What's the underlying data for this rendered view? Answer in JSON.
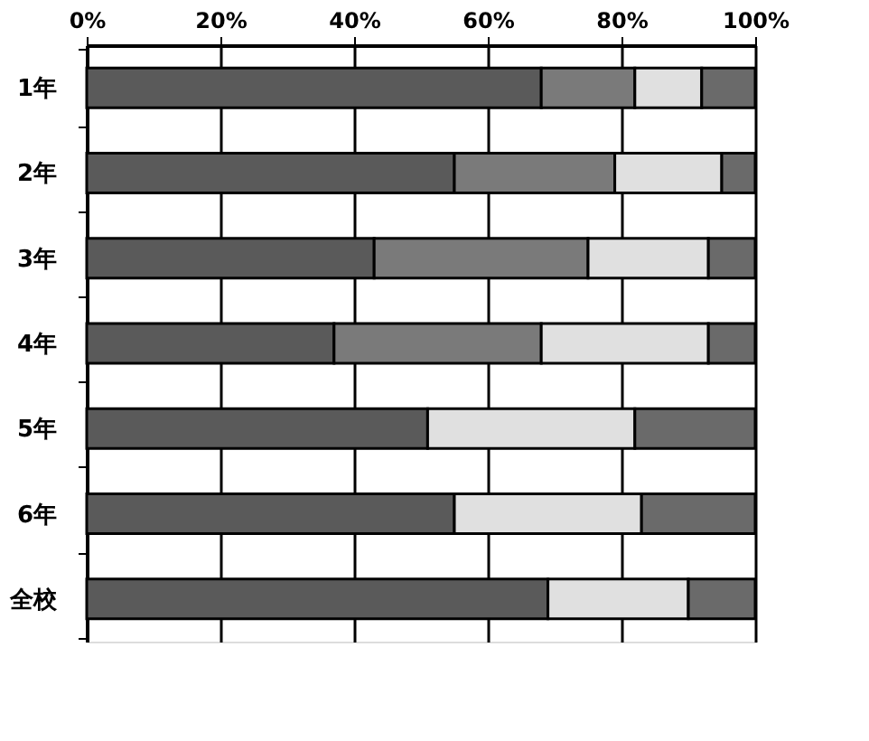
{
  "chart_data": {
    "type": "bar",
    "orientation": "horizontal",
    "stacked": true,
    "categories": [
      "1年",
      "2年",
      "3年",
      "4年",
      "5年",
      "6年",
      "全校"
    ],
    "series": [
      {
        "color": "#5a5a5a",
        "values": [
          68,
          55,
          43,
          37,
          51,
          55,
          69
        ]
      },
      {
        "color": "#7a7a7a",
        "values": [
          14,
          24,
          32,
          31,
          null,
          null,
          null
        ]
      },
      {
        "color": "#e0e0e0",
        "values": [
          10,
          16,
          18,
          25,
          31,
          28,
          21
        ]
      },
      {
        "color": "#6a6a6a",
        "values": [
          8,
          5,
          7,
          7,
          18,
          17,
          10
        ]
      }
    ],
    "xlim": [
      0,
      100
    ],
    "xticks": [
      {
        "value": 0,
        "label": "0%"
      },
      {
        "value": 20,
        "label": "20%"
      },
      {
        "value": 40,
        "label": "40%"
      },
      {
        "value": 60,
        "label": "60%"
      },
      {
        "value": 80,
        "label": "80%"
      },
      {
        "value": 100,
        "label": "100%"
      }
    ],
    "grid": "x",
    "legend": false
  }
}
